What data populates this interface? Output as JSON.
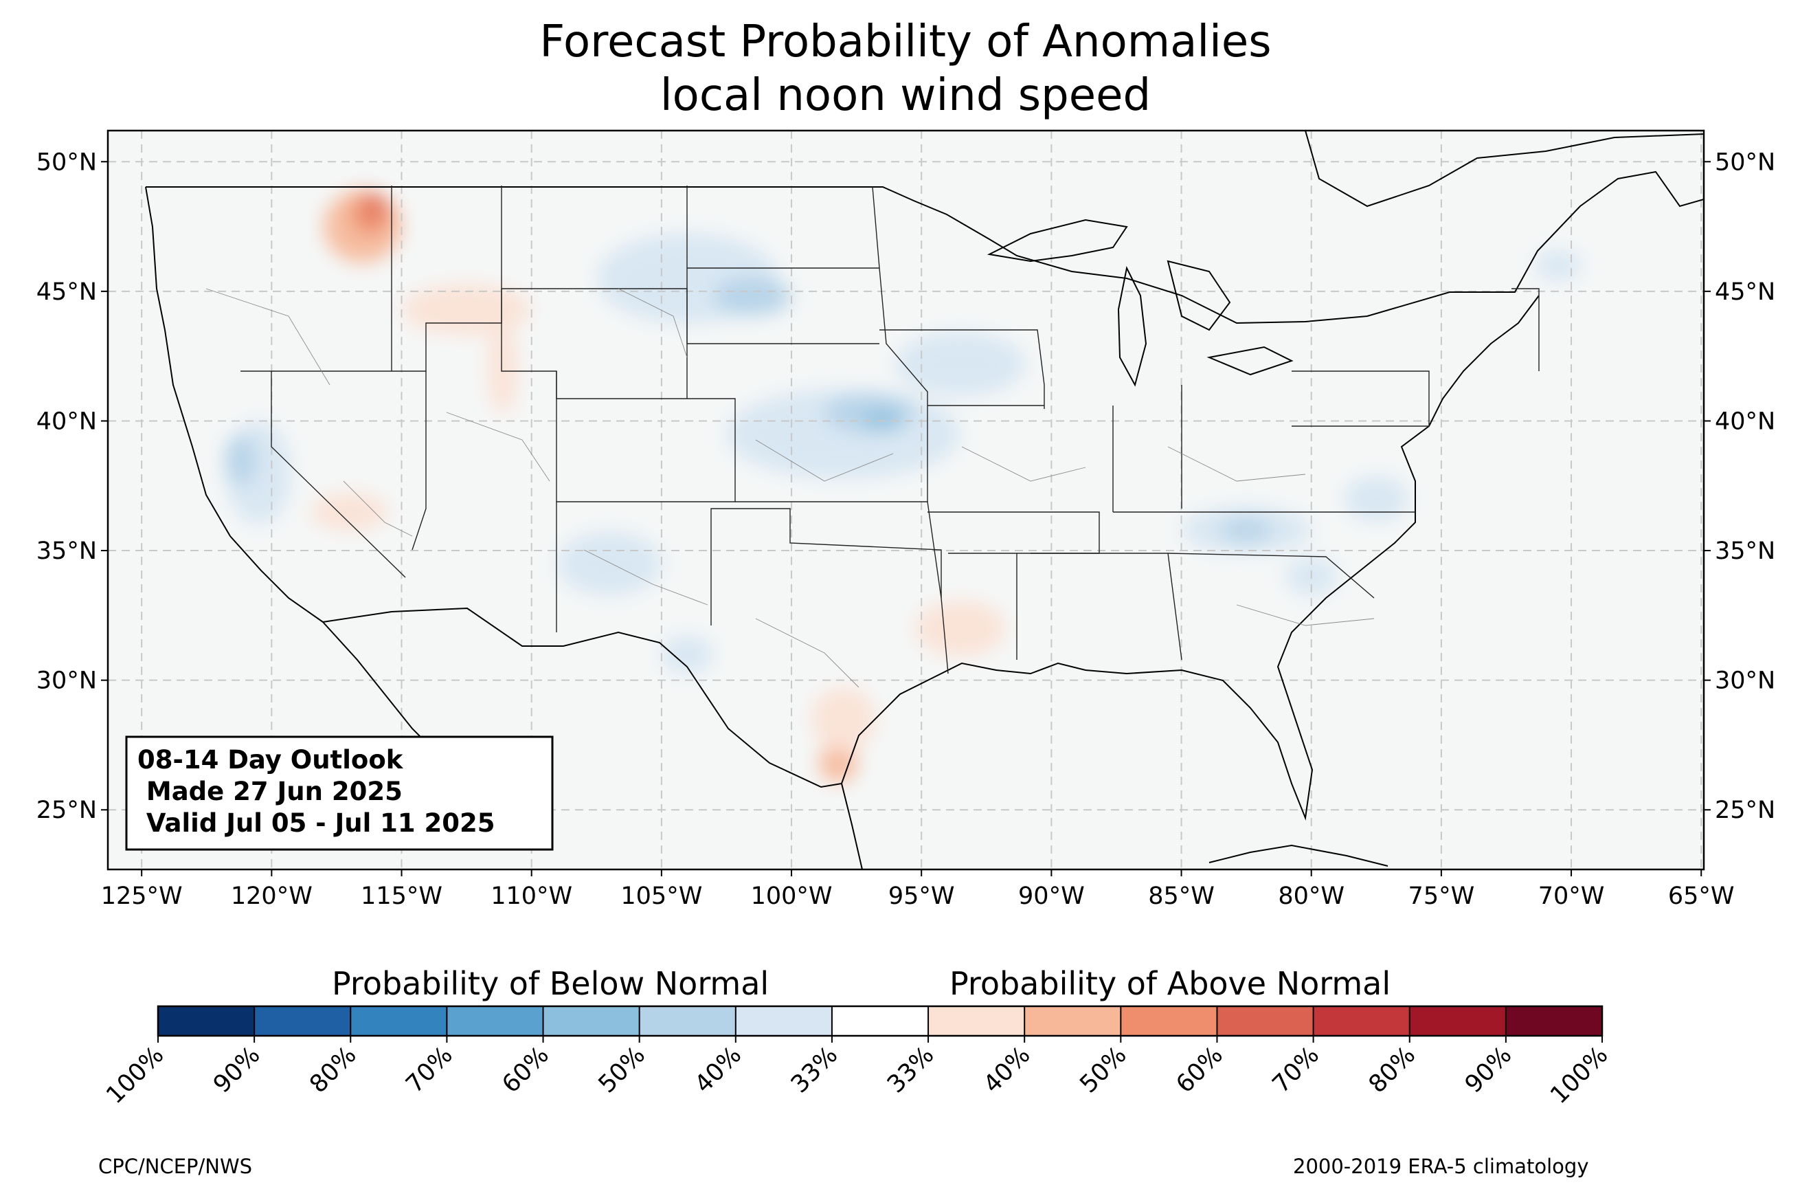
{
  "title_line1": "Forecast Probability of Anomalies",
  "title_line2": "local noon wind speed",
  "outlook": {
    "line1": "08-14 Day Outlook",
    "line2": " Made 27 Jun 2025",
    "line3": " Valid Jul 05 - Jul 11 2025"
  },
  "map": {
    "lon_range": [
      -126.3,
      -64.9
    ],
    "lat_range": [
      22.7,
      51.2
    ],
    "lon_ticks": [
      "125°W",
      "120°W",
      "115°W",
      "110°W",
      "105°W",
      "100°W",
      "95°W",
      "90°W",
      "85°W",
      "80°W",
      "75°W",
      "70°W",
      "65°W"
    ],
    "lat_ticks": [
      "50°N",
      "45°N",
      "40°N",
      "35°N",
      "30°N",
      "25°N"
    ],
    "background_color": "#f5f7f7",
    "gridlines": true
  },
  "colorbar": {
    "below_label": "Probability of Below Normal",
    "above_label": "Probability of Above Normal",
    "tick_labels": [
      "100%",
      "90%",
      "80%",
      "70%",
      "60%",
      "50%",
      "40%",
      "33%",
      "33%",
      "40%",
      "50%",
      "60%",
      "70%",
      "80%",
      "90%",
      "100%"
    ],
    "colors": [
      "#08306b",
      "#1f5fa3",
      "#3383bf",
      "#5aa1cf",
      "#8bbfdd",
      "#b5d3e8",
      "#d7e6f2",
      "#ffffff",
      "#fbe2d5",
      "#f6b899",
      "#ee8e6c",
      "#db6151",
      "#c3363a",
      "#a11728",
      "#6f0622"
    ]
  },
  "credits": {
    "left": "CPC/NCEP/NWS",
    "right": "2000-2019 ERA-5 climatology"
  },
  "anomaly_regions": [
    {
      "category": "above",
      "level": "40-50",
      "lon": -116.5,
      "lat": 47.5,
      "w": 3.0,
      "h": 2.8
    },
    {
      "category": "above",
      "level": "50-60",
      "lon": -116.2,
      "lat": 48.0,
      "w": 1.5,
      "h": 1.6
    },
    {
      "category": "above",
      "level": "60-70",
      "lon": -116.0,
      "lat": 48.3,
      "w": 0.6,
      "h": 0.8
    },
    {
      "category": "above",
      "level": "33-40",
      "lon": -112.5,
      "lat": 44.3,
      "w": 5.0,
      "h": 2.0
    },
    {
      "category": "above",
      "level": "33-40",
      "lon": -111.1,
      "lat": 42.0,
      "w": 1.2,
      "h": 3.5
    },
    {
      "category": "above",
      "level": "33-40",
      "lon": -117.0,
      "lat": 36.5,
      "w": 3.0,
      "h": 1.5
    },
    {
      "category": "above",
      "level": "33-40",
      "lon": -93.5,
      "lat": 32.0,
      "w": 3.5,
      "h": 2.2
    },
    {
      "category": "above",
      "level": "40-50",
      "lon": -98.2,
      "lat": 26.8,
      "w": 1.5,
      "h": 1.5
    },
    {
      "category": "above",
      "level": "33-40",
      "lon": -98.0,
      "lat": 28.5,
      "w": 2.5,
      "h": 2.5
    },
    {
      "category": "below",
      "level": "33-40",
      "lon": -104.0,
      "lat": 45.5,
      "w": 7.0,
      "h": 3.5
    },
    {
      "category": "below",
      "level": "40-50",
      "lon": -101.5,
      "lat": 44.8,
      "w": 3.0,
      "h": 1.5
    },
    {
      "category": "below",
      "level": "33-40",
      "lon": -98.0,
      "lat": 39.5,
      "w": 9.0,
      "h": 3.5
    },
    {
      "category": "below",
      "level": "40-50",
      "lon": -97.0,
      "lat": 40.3,
      "w": 3.5,
      "h": 1.5
    },
    {
      "category": "below",
      "level": "50-60",
      "lon": -96.5,
      "lat": 40.0,
      "w": 1.5,
      "h": 0.7
    },
    {
      "category": "below",
      "level": "33-40",
      "lon": -93.5,
      "lat": 42.2,
      "w": 5.0,
      "h": 2.5
    },
    {
      "category": "below",
      "level": "33-40",
      "lon": -120.5,
      "lat": 38.0,
      "w": 2.5,
      "h": 4.0
    },
    {
      "category": "below",
      "level": "40-50",
      "lon": -121.2,
      "lat": 38.5,
      "w": 1.2,
      "h": 2.0
    },
    {
      "category": "below",
      "level": "33-40",
      "lon": -82.5,
      "lat": 35.8,
      "w": 5.0,
      "h": 1.8
    },
    {
      "category": "below",
      "level": "40-50",
      "lon": -82.5,
      "lat": 35.8,
      "w": 2.0,
      "h": 0.9
    },
    {
      "category": "below",
      "level": "33-40",
      "lon": -77.5,
      "lat": 37.0,
      "w": 2.5,
      "h": 1.8
    },
    {
      "category": "below",
      "level": "33-40",
      "lon": -80.0,
      "lat": 34.0,
      "w": 2.0,
      "h": 1.5
    },
    {
      "category": "below",
      "level": "33-40",
      "lon": -107.0,
      "lat": 34.5,
      "w": 4.0,
      "h": 2.5
    },
    {
      "category": "below",
      "level": "33-40",
      "lon": -104.0,
      "lat": 31.0,
      "w": 2.0,
      "h": 1.5
    },
    {
      "category": "below",
      "level": "33-40",
      "lon": -70.5,
      "lat": 46.0,
      "w": 1.8,
      "h": 1.2
    }
  ]
}
